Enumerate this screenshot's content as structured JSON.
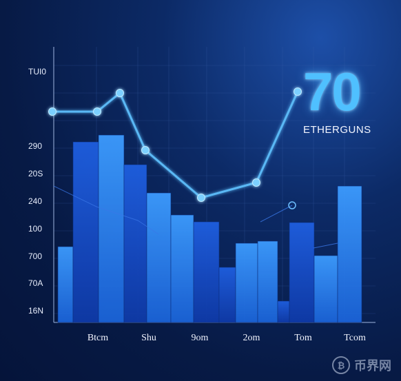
{
  "chart_data": {
    "type": "bar",
    "title": "70",
    "subtitle": "ETHERGUNS",
    "yticks": [
      "TUI0",
      "290",
      "20S",
      "240",
      "100",
      "700",
      "70A",
      "16N"
    ],
    "xticks": [
      "Btcm",
      "Shu",
      "9om",
      "2om",
      "Tom",
      "Tcom"
    ],
    "bars": [
      {
        "value": 110
      },
      {
        "value": 262
      },
      {
        "value": 272
      },
      {
        "value": 229
      },
      {
        "value": 188
      },
      {
        "value": 156
      },
      {
        "value": 146
      },
      {
        "value": 80
      },
      {
        "value": 115
      },
      {
        "value": 118
      },
      {
        "value": 31
      },
      {
        "value": 145
      },
      {
        "value": 97
      },
      {
        "value": 198
      }
    ],
    "line": {
      "values": [
        306,
        306,
        333,
        250,
        181,
        203,
        335
      ]
    },
    "colors": {
      "accent": "#4fc0ff",
      "bar_light": "#2f8cf0",
      "bar_dark": "#1447c9",
      "line": "#5ab8f5"
    }
  },
  "watermark": {
    "icon": "bitcoin-coin-icon",
    "text": "币界网"
  }
}
